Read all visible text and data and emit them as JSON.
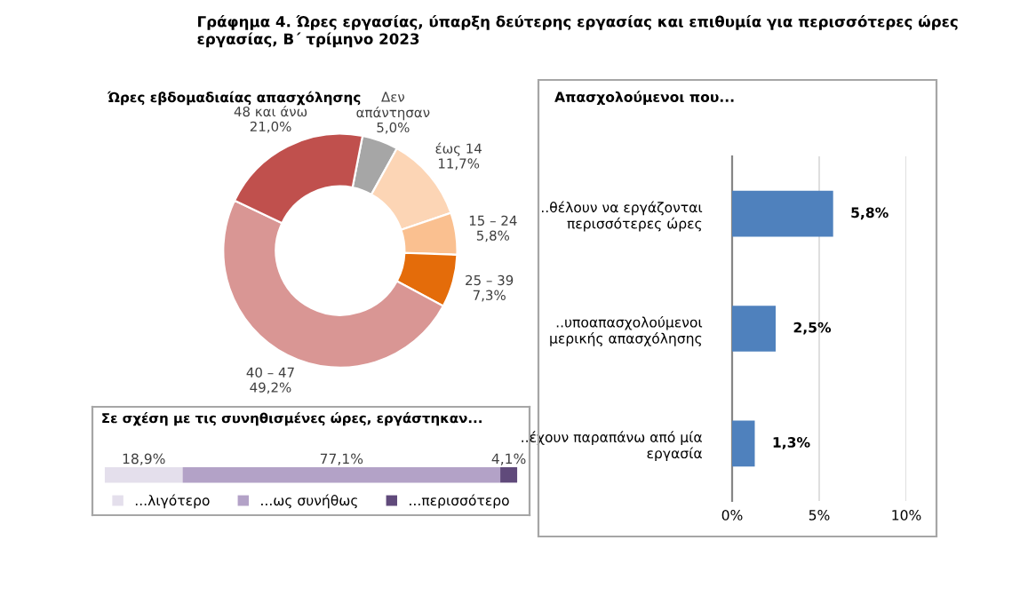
{
  "chart_data": [
    {
      "type": "donut",
      "title": "Γράφημα 4. Ώρες εργασίας, ύπαρξη δεύτερης εργασίας και επιθυμία για περισσότερες ώρες εργασίας, Β΄ τρίμηνο 2023",
      "subtitle": "Ώρες εβδομαδιαίας απασχόλησης",
      "categories": [
        "Δεν\nαπάντησαν",
        "έως 14",
        "15 – 24",
        "25 – 39",
        "40 – 47",
        "48 και άνω"
      ],
      "values": [
        5.0,
        11.7,
        5.8,
        7.3,
        49.2,
        21.0
      ],
      "value_labels": [
        "5,0%",
        "11,7%",
        "5,8%",
        "7,3%",
        "49,2%",
        "21,0%"
      ],
      "colors": [
        "#a6a6a6",
        "#fcd5b5",
        "#fac090",
        "#e46c0a",
        "#d99694",
        "#c0504d"
      ]
    },
    {
      "type": "bar",
      "title": "Σε σχέση με τις συνηθισμένες ώρες, εργάστηκαν...",
      "orientation": "horizontal",
      "stacked": true,
      "categories": [
        null
      ],
      "series": [
        {
          "name": "...λιγότερο",
          "color": "#e4dfec",
          "values": [
            18.9
          ],
          "value_labels": [
            "18,9%"
          ]
        },
        {
          "name": "...ως συνήθως",
          "color": "#b3a2c7",
          "values": [
            77.1
          ],
          "value_labels": [
            "77,1%"
          ]
        },
        {
          "name": "...περισσότερο",
          "color": "#604a7b",
          "values": [
            4.1
          ],
          "value_labels": [
            "4,1%"
          ]
        }
      ],
      "legend": "bottom"
    },
    {
      "type": "bar",
      "title": "Απασχολούμενοι που...",
      "orientation": "horizontal",
      "categories": [
        "..θέλουν να εργάζονται\nπερισσότερες ώρες",
        "..υποαπασχολούμενοι\nμερικής απασχόλησης",
        "..έχουν παραπάνω από μία\nεργασία"
      ],
      "values": [
        5.8,
        2.5,
        1.3
      ],
      "value_labels": [
        "5,8%",
        "2,5%",
        "1,3%"
      ],
      "color": "#4f81bd",
      "xlim": [
        0,
        10
      ],
      "xticks": [
        {
          "value": 0,
          "label": "0%"
        },
        {
          "value": 5,
          "label": "5%"
        },
        {
          "value": 10,
          "label": "10%"
        }
      ],
      "grid": "x"
    }
  ]
}
